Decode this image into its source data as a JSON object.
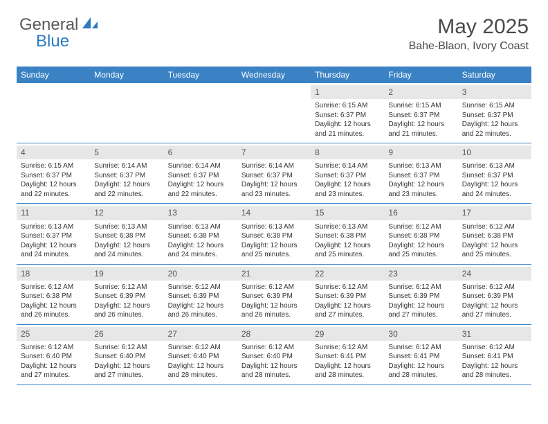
{
  "logo": {
    "part1": "General",
    "part2": "Blue"
  },
  "title": "May 2025",
  "location": "Bahe-Blaon, Ivory Coast",
  "colors": {
    "header_bg": "#3a82c4",
    "header_text": "#ffffff",
    "daynum_bg": "#e7e7e7",
    "rule": "#3a82c4",
    "brand_blue": "#2b79c2",
    "brand_grey": "#5a5a5a"
  },
  "day_names": [
    "Sunday",
    "Monday",
    "Tuesday",
    "Wednesday",
    "Thursday",
    "Friday",
    "Saturday"
  ],
  "weeks": [
    [
      null,
      null,
      null,
      null,
      {
        "n": "1",
        "sr": "Sunrise: 6:15 AM",
        "ss": "Sunset: 6:37 PM",
        "d1": "Daylight: 12 hours",
        "d2": "and 21 minutes."
      },
      {
        "n": "2",
        "sr": "Sunrise: 6:15 AM",
        "ss": "Sunset: 6:37 PM",
        "d1": "Daylight: 12 hours",
        "d2": "and 21 minutes."
      },
      {
        "n": "3",
        "sr": "Sunrise: 6:15 AM",
        "ss": "Sunset: 6:37 PM",
        "d1": "Daylight: 12 hours",
        "d2": "and 22 minutes."
      }
    ],
    [
      {
        "n": "4",
        "sr": "Sunrise: 6:15 AM",
        "ss": "Sunset: 6:37 PM",
        "d1": "Daylight: 12 hours",
        "d2": "and 22 minutes."
      },
      {
        "n": "5",
        "sr": "Sunrise: 6:14 AM",
        "ss": "Sunset: 6:37 PM",
        "d1": "Daylight: 12 hours",
        "d2": "and 22 minutes."
      },
      {
        "n": "6",
        "sr": "Sunrise: 6:14 AM",
        "ss": "Sunset: 6:37 PM",
        "d1": "Daylight: 12 hours",
        "d2": "and 22 minutes."
      },
      {
        "n": "7",
        "sr": "Sunrise: 6:14 AM",
        "ss": "Sunset: 6:37 PM",
        "d1": "Daylight: 12 hours",
        "d2": "and 23 minutes."
      },
      {
        "n": "8",
        "sr": "Sunrise: 6:14 AM",
        "ss": "Sunset: 6:37 PM",
        "d1": "Daylight: 12 hours",
        "d2": "and 23 minutes."
      },
      {
        "n": "9",
        "sr": "Sunrise: 6:13 AM",
        "ss": "Sunset: 6:37 PM",
        "d1": "Daylight: 12 hours",
        "d2": "and 23 minutes."
      },
      {
        "n": "10",
        "sr": "Sunrise: 6:13 AM",
        "ss": "Sunset: 6:37 PM",
        "d1": "Daylight: 12 hours",
        "d2": "and 24 minutes."
      }
    ],
    [
      {
        "n": "11",
        "sr": "Sunrise: 6:13 AM",
        "ss": "Sunset: 6:37 PM",
        "d1": "Daylight: 12 hours",
        "d2": "and 24 minutes."
      },
      {
        "n": "12",
        "sr": "Sunrise: 6:13 AM",
        "ss": "Sunset: 6:38 PM",
        "d1": "Daylight: 12 hours",
        "d2": "and 24 minutes."
      },
      {
        "n": "13",
        "sr": "Sunrise: 6:13 AM",
        "ss": "Sunset: 6:38 PM",
        "d1": "Daylight: 12 hours",
        "d2": "and 24 minutes."
      },
      {
        "n": "14",
        "sr": "Sunrise: 6:13 AM",
        "ss": "Sunset: 6:38 PM",
        "d1": "Daylight: 12 hours",
        "d2": "and 25 minutes."
      },
      {
        "n": "15",
        "sr": "Sunrise: 6:13 AM",
        "ss": "Sunset: 6:38 PM",
        "d1": "Daylight: 12 hours",
        "d2": "and 25 minutes."
      },
      {
        "n": "16",
        "sr": "Sunrise: 6:12 AM",
        "ss": "Sunset: 6:38 PM",
        "d1": "Daylight: 12 hours",
        "d2": "and 25 minutes."
      },
      {
        "n": "17",
        "sr": "Sunrise: 6:12 AM",
        "ss": "Sunset: 6:38 PM",
        "d1": "Daylight: 12 hours",
        "d2": "and 25 minutes."
      }
    ],
    [
      {
        "n": "18",
        "sr": "Sunrise: 6:12 AM",
        "ss": "Sunset: 6:38 PM",
        "d1": "Daylight: 12 hours",
        "d2": "and 26 minutes."
      },
      {
        "n": "19",
        "sr": "Sunrise: 6:12 AM",
        "ss": "Sunset: 6:39 PM",
        "d1": "Daylight: 12 hours",
        "d2": "and 26 minutes."
      },
      {
        "n": "20",
        "sr": "Sunrise: 6:12 AM",
        "ss": "Sunset: 6:39 PM",
        "d1": "Daylight: 12 hours",
        "d2": "and 26 minutes."
      },
      {
        "n": "21",
        "sr": "Sunrise: 6:12 AM",
        "ss": "Sunset: 6:39 PM",
        "d1": "Daylight: 12 hours",
        "d2": "and 26 minutes."
      },
      {
        "n": "22",
        "sr": "Sunrise: 6:12 AM",
        "ss": "Sunset: 6:39 PM",
        "d1": "Daylight: 12 hours",
        "d2": "and 27 minutes."
      },
      {
        "n": "23",
        "sr": "Sunrise: 6:12 AM",
        "ss": "Sunset: 6:39 PM",
        "d1": "Daylight: 12 hours",
        "d2": "and 27 minutes."
      },
      {
        "n": "24",
        "sr": "Sunrise: 6:12 AM",
        "ss": "Sunset: 6:39 PM",
        "d1": "Daylight: 12 hours",
        "d2": "and 27 minutes."
      }
    ],
    [
      {
        "n": "25",
        "sr": "Sunrise: 6:12 AM",
        "ss": "Sunset: 6:40 PM",
        "d1": "Daylight: 12 hours",
        "d2": "and 27 minutes."
      },
      {
        "n": "26",
        "sr": "Sunrise: 6:12 AM",
        "ss": "Sunset: 6:40 PM",
        "d1": "Daylight: 12 hours",
        "d2": "and 27 minutes."
      },
      {
        "n": "27",
        "sr": "Sunrise: 6:12 AM",
        "ss": "Sunset: 6:40 PM",
        "d1": "Daylight: 12 hours",
        "d2": "and 28 minutes."
      },
      {
        "n": "28",
        "sr": "Sunrise: 6:12 AM",
        "ss": "Sunset: 6:40 PM",
        "d1": "Daylight: 12 hours",
        "d2": "and 28 minutes."
      },
      {
        "n": "29",
        "sr": "Sunrise: 6:12 AM",
        "ss": "Sunset: 6:41 PM",
        "d1": "Daylight: 12 hours",
        "d2": "and 28 minutes."
      },
      {
        "n": "30",
        "sr": "Sunrise: 6:12 AM",
        "ss": "Sunset: 6:41 PM",
        "d1": "Daylight: 12 hours",
        "d2": "and 28 minutes."
      },
      {
        "n": "31",
        "sr": "Sunrise: 6:12 AM",
        "ss": "Sunset: 6:41 PM",
        "d1": "Daylight: 12 hours",
        "d2": "and 28 minutes."
      }
    ]
  ]
}
